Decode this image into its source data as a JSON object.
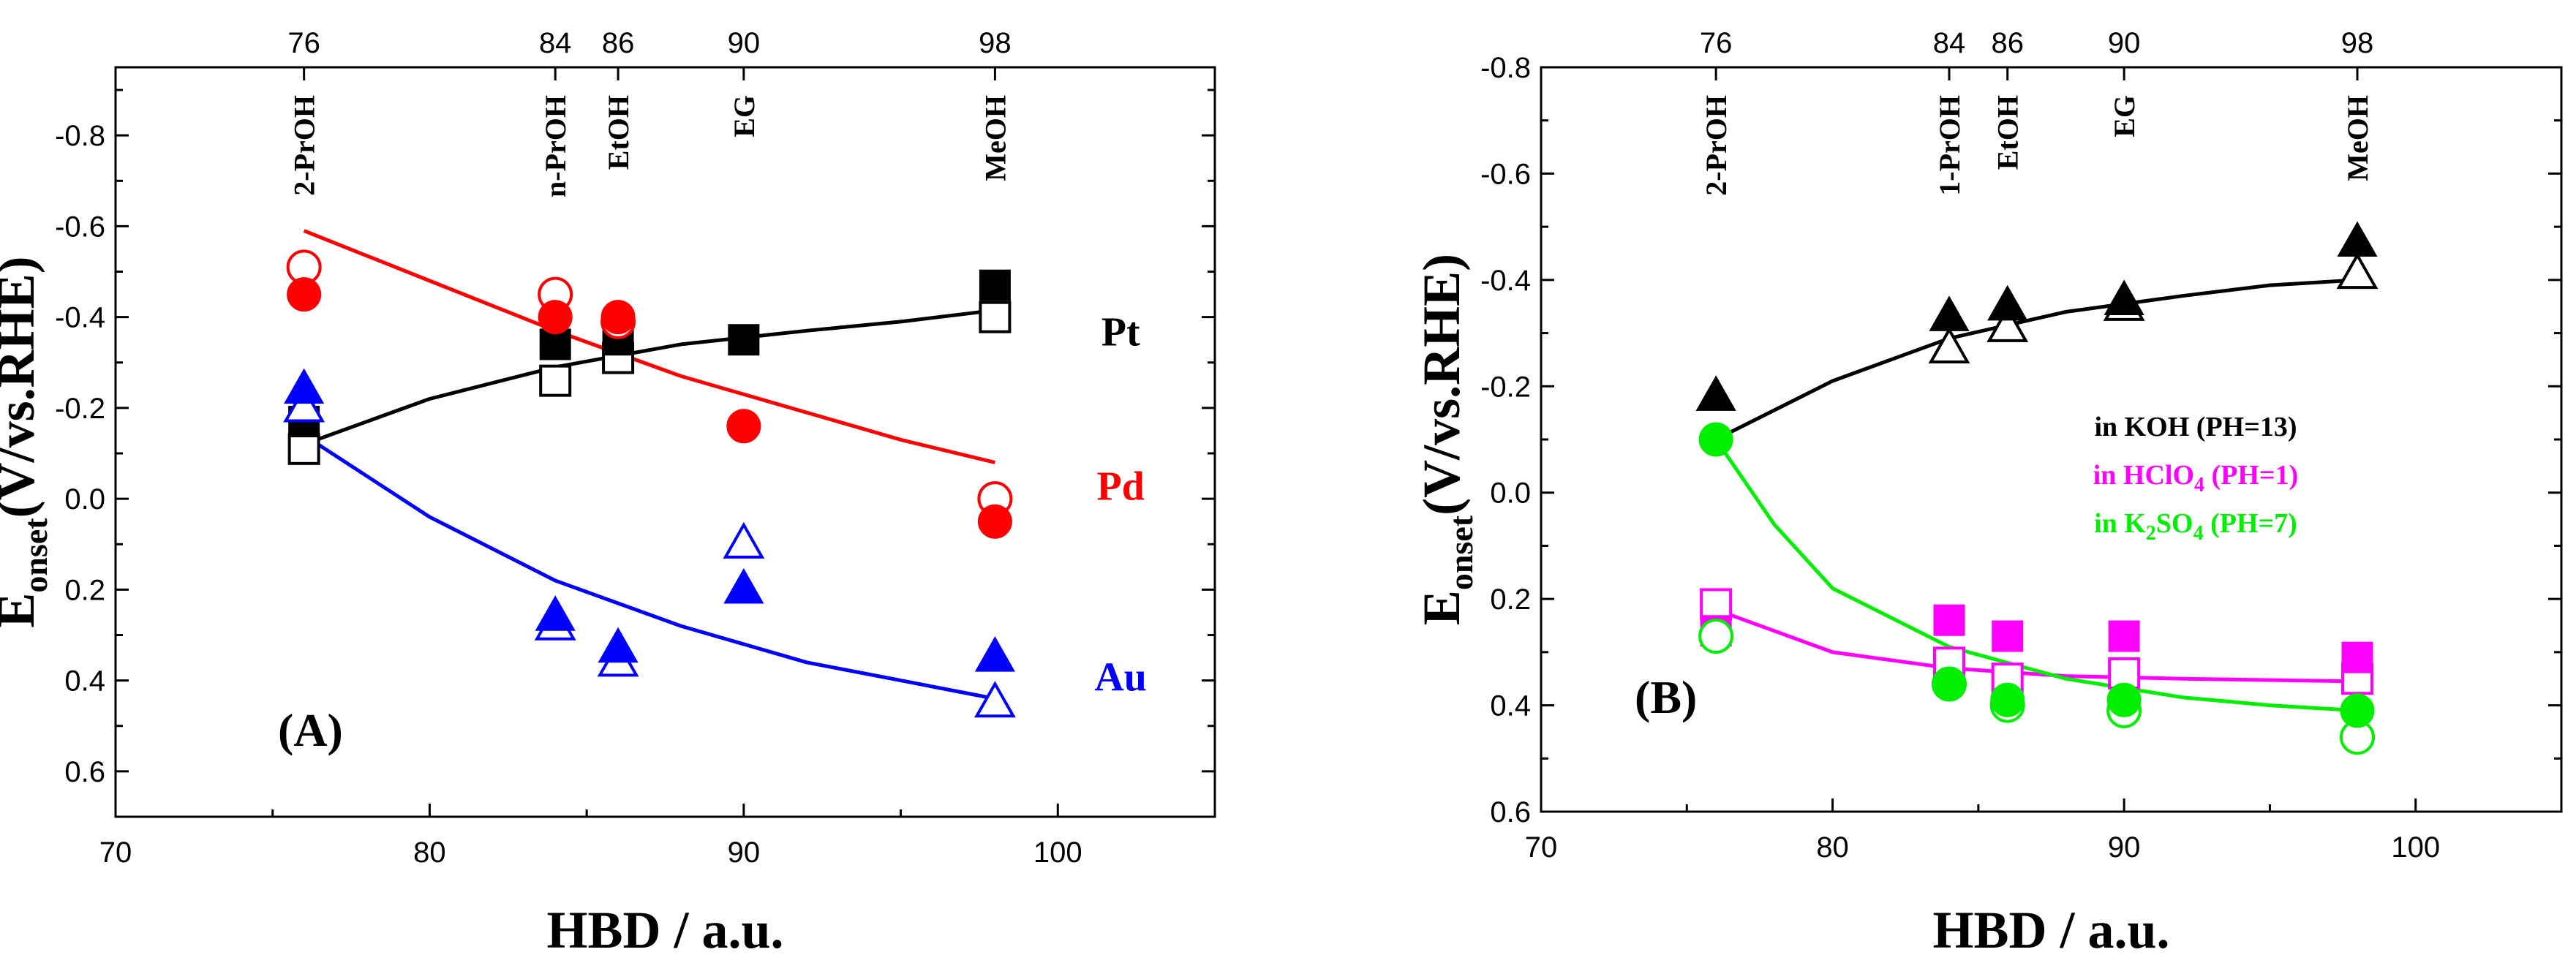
{
  "chart_data": [
    {
      "type": "scatter",
      "panel_label": "(A)",
      "xlabel": "HBD  / a.u.",
      "ylabel": "E",
      "ylabel_subscript": "onset",
      "ylabel_suffix": "(V/vs.RHE)",
      "xlim": [
        70,
        105
      ],
      "ylim": [
        -0.95,
        0.7
      ],
      "y_inverted": true,
      "x_ticks": [
        70,
        80,
        90,
        100
      ],
      "y_ticks": [
        "-0.8",
        "-0.6",
        "-0.4",
        "-0.2",
        "0.0",
        "0.2",
        "0.4",
        "0.6"
      ],
      "y_tick_values": [
        -0.8,
        -0.6,
        -0.4,
        -0.2,
        0.0,
        0.2,
        0.4,
        0.6
      ],
      "top_ticks": [
        {
          "x": 76,
          "label": "76",
          "solvent": "2-PrOH"
        },
        {
          "x": 84,
          "label": "84",
          "solvent": "n-PrOH"
        },
        {
          "x": 86,
          "label": "86",
          "solvent": "EtOH"
        },
        {
          "x": 90,
          "label": "90",
          "solvent": "EG"
        },
        {
          "x": 98,
          "label": "98",
          "solvent": "MeOH"
        }
      ],
      "series": [
        {
          "name": "Pt",
          "color": "#000000",
          "filled_marker": "square",
          "filled": [
            [
              76,
              -0.17
            ],
            [
              84,
              -0.34
            ],
            [
              86,
              -0.35
            ],
            [
              90,
              -0.35
            ],
            [
              98,
              -0.47
            ]
          ],
          "open_marker": "square",
          "open": [
            [
              76,
              -0.11
            ],
            [
              84,
              -0.26
            ],
            [
              86,
              -0.31
            ],
            [
              98,
              -0.4
            ]
          ],
          "fit": [
            [
              76,
              -0.12
            ],
            [
              80,
              -0.22
            ],
            [
              84,
              -0.29
            ],
            [
              88,
              -0.34
            ],
            [
              92,
              -0.37
            ],
            [
              95,
              -0.39
            ],
            [
              98,
              -0.415
            ]
          ],
          "label_pos": [
            102,
            -0.37
          ]
        },
        {
          "name": "Pd",
          "color": "#ff0000",
          "filled_marker": "circle",
          "filled": [
            [
              76,
              -0.45
            ],
            [
              84,
              -0.4
            ],
            [
              86,
              -0.4
            ],
            [
              90,
              -0.16
            ],
            [
              98,
              0.05
            ]
          ],
          "open_marker": "circle",
          "open": [
            [
              76,
              -0.51
            ],
            [
              84,
              -0.45
            ],
            [
              86,
              -0.39
            ],
            [
              98,
              0.0
            ]
          ],
          "fit": [
            [
              76,
              -0.59
            ],
            [
              80,
              -0.48
            ],
            [
              84,
              -0.37
            ],
            [
              88,
              -0.27
            ],
            [
              92,
              -0.19
            ],
            [
              95,
              -0.13
            ],
            [
              98,
              -0.08
            ]
          ],
          "label_pos": [
            102,
            -0.03
          ]
        },
        {
          "name": "Au",
          "color": "#0000ff",
          "filled_marker": "triangle",
          "filled": [
            [
              76,
              -0.24
            ],
            [
              84,
              0.26
            ],
            [
              86,
              0.33
            ],
            [
              90,
              0.2
            ],
            [
              98,
              0.35
            ]
          ],
          "open_marker": "triangle",
          "open": [
            [
              76,
              -0.2
            ],
            [
              84,
              0.28
            ],
            [
              86,
              0.36
            ],
            [
              90,
              0.1
            ],
            [
              98,
              0.45
            ]
          ],
          "fit": [
            [
              76,
              -0.14
            ],
            [
              80,
              0.04
            ],
            [
              84,
              0.18
            ],
            [
              88,
              0.28
            ],
            [
              92,
              0.36
            ],
            [
              95,
              0.4
            ],
            [
              98,
              0.44
            ]
          ],
          "label_pos": [
            102,
            0.39
          ]
        }
      ]
    },
    {
      "type": "scatter",
      "panel_label": "(B)",
      "xlabel": "HBD  / a.u.",
      "ylabel": "E",
      "ylabel_subscript": "onset",
      "ylabel_suffix": "(V/vs.RHE)",
      "xlim": [
        70,
        105
      ],
      "ylim": [
        -0.8,
        0.6
      ],
      "y_inverted": true,
      "x_ticks": [
        70,
        80,
        90,
        100
      ],
      "y_ticks": [
        "-0.8",
        "-0.6",
        "-0.4",
        "-0.2",
        "0.0",
        "0.2",
        "0.4",
        "0.6"
      ],
      "y_tick_values": [
        -0.8,
        -0.6,
        -0.4,
        -0.2,
        0.0,
        0.2,
        0.4,
        0.6
      ],
      "top_ticks": [
        {
          "x": 76,
          "label": "76",
          "solvent": "2-PrOH"
        },
        {
          "x": 84,
          "label": "84",
          "solvent": "1-PrOH"
        },
        {
          "x": 86,
          "label": "86",
          "solvent": "EtOH"
        },
        {
          "x": 90,
          "label": "90",
          "solvent": "EG"
        },
        {
          "x": 98,
          "label": "98",
          "solvent": "MeOH"
        }
      ],
      "legend": [
        {
          "series": "KOH",
          "parts": [
            "in KOH (PH=13)"
          ],
          "color": "#000000"
        },
        {
          "series": "HClO4",
          "parts": [
            "in HClO",
            "4",
            " (PH=1)"
          ],
          "color": "#ff00ff"
        },
        {
          "series": "K2SO4",
          "parts": [
            "in K",
            "2",
            "SO",
            "4",
            " (PH=7)"
          ],
          "color": "#00ee00"
        }
      ],
      "series": [
        {
          "name": "KOH",
          "color": "#000000",
          "filled_marker": "triangle",
          "filled": [
            [
              76,
              -0.18
            ],
            [
              84,
              -0.33
            ],
            [
              86,
              -0.35
            ],
            [
              90,
              -0.36
            ],
            [
              98,
              -0.47
            ]
          ],
          "open_marker": "triangle",
          "open": [
            [
              84,
              -0.27
            ],
            [
              86,
              -0.31
            ],
            [
              90,
              -0.35
            ],
            [
              98,
              -0.41
            ]
          ],
          "fit": [
            [
              76,
              -0.1
            ],
            [
              80,
              -0.21
            ],
            [
              84,
              -0.29
            ],
            [
              88,
              -0.34
            ],
            [
              92,
              -0.37
            ],
            [
              95,
              -0.39
            ],
            [
              98,
              -0.4
            ]
          ]
        },
        {
          "name": "HClO4",
          "color": "#ff00ff",
          "filled_marker": "square",
          "filled": [
            [
              76,
              0.26
            ],
            [
              84,
              0.24
            ],
            [
              86,
              0.27
            ],
            [
              90,
              0.27
            ],
            [
              98,
              0.31
            ]
          ],
          "open_marker": "square",
          "open": [
            [
              76,
              0.21
            ],
            [
              84,
              0.32
            ],
            [
              86,
              0.35
            ],
            [
              90,
              0.34
            ],
            [
              98,
              0.35
            ]
          ],
          "fit": [
            [
              76,
              0.22
            ],
            [
              80,
              0.3
            ],
            [
              84,
              0.33
            ],
            [
              88,
              0.345
            ],
            [
              92,
              0.35
            ],
            [
              98,
              0.355
            ]
          ]
        },
        {
          "name": "K2SO4",
          "color": "#00ee00",
          "filled_marker": "circle",
          "filled": [
            [
              76,
              -0.1
            ],
            [
              84,
              0.36
            ],
            [
              86,
              0.39
            ],
            [
              90,
              0.39
            ],
            [
              98,
              0.41
            ]
          ],
          "open_marker": "circle",
          "open": [
            [
              76,
              0.27
            ],
            [
              84,
              0.36
            ],
            [
              86,
              0.4
            ],
            [
              90,
              0.41
            ],
            [
              98,
              0.46
            ]
          ],
          "fit": [
            [
              76,
              -0.1
            ],
            [
              78,
              0.06
            ],
            [
              80,
              0.18
            ],
            [
              84,
              0.29
            ],
            [
              88,
              0.35
            ],
            [
              92,
              0.385
            ],
            [
              95,
              0.4
            ],
            [
              98,
              0.41
            ]
          ]
        }
      ]
    }
  ]
}
